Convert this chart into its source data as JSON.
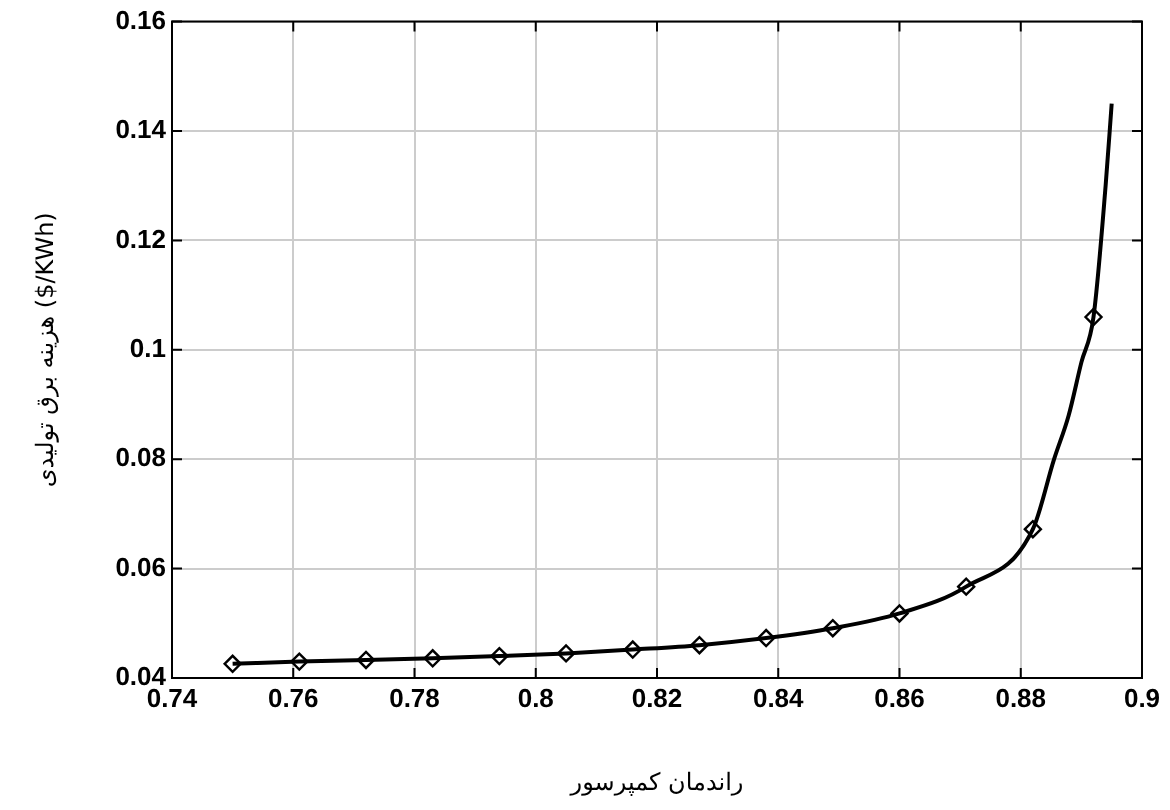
{
  "chart_data": {
    "type": "line",
    "xlabel": "راندمان کمپرسور",
    "ylabel": "هزینه برق تولیدی ($/KWh)",
    "xlim": [
      0.74,
      0.9
    ],
    "xticks": [
      0.74,
      0.76,
      0.78,
      0.8,
      0.82,
      0.84,
      0.86,
      0.88,
      0.9
    ],
    "ylim": [
      0.04,
      0.16
    ],
    "yticks": [
      0.04,
      0.06,
      0.08,
      0.1,
      0.12,
      0.14,
      0.16
    ],
    "grid": true,
    "legend": false,
    "series": [
      {
        "type": "line",
        "color": "#000000",
        "marker": "none",
        "x": [
          0.75,
          0.761,
          0.772,
          0.783,
          0.794,
          0.805,
          0.816,
          0.827,
          0.838,
          0.849,
          0.86,
          0.871,
          0.882,
          0.8855,
          0.8879,
          0.89,
          0.892,
          0.894,
          0.895
        ],
        "values": [
          0.0426,
          0.043,
          0.0433,
          0.0436,
          0.044,
          0.0445,
          0.0452,
          0.046,
          0.0473,
          0.0491,
          0.0518,
          0.0567,
          0.0672,
          0.08,
          0.088,
          0.0977,
          0.106,
          0.13,
          0.145
        ]
      },
      {
        "type": "scatter",
        "color": "#000000",
        "marker": "diamond",
        "x": [
          0.75,
          0.761,
          0.772,
          0.783,
          0.794,
          0.805,
          0.816,
          0.827,
          0.838,
          0.849,
          0.86,
          0.871,
          0.882,
          0.892
        ],
        "values": [
          0.0426,
          0.043,
          0.0433,
          0.0436,
          0.044,
          0.0445,
          0.0452,
          0.046,
          0.0473,
          0.0491,
          0.0518,
          0.0567,
          0.0672,
          0.106
        ]
      }
    ]
  }
}
